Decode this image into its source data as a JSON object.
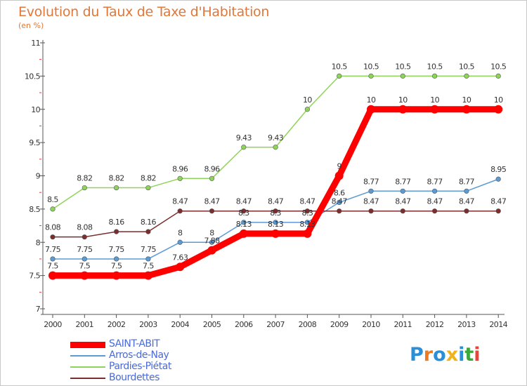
{
  "header": {
    "title": "Evolution du Taux de Taxe d'Habitation",
    "subtitle": "(en %)"
  },
  "logo": {
    "parts": [
      "P",
      "r",
      "o",
      "x",
      "i",
      "t",
      "i"
    ],
    "colors": [
      "#2a8fd6",
      "#f07a1e",
      "#2a8fd6",
      "#f0b21e",
      "#2a8fd6",
      "#3aa83a",
      "#e8443a"
    ]
  },
  "chart_data": {
    "type": "line",
    "title": "Evolution du Taux de Taxe d'Habitation",
    "subtitle": "(en %)",
    "x": [
      "2000",
      "2001",
      "2002",
      "2003",
      "2004",
      "2005",
      "2006",
      "2007",
      "2008",
      "2009",
      "2010",
      "2011",
      "2012",
      "2013",
      "2014"
    ],
    "ylim": [
      7,
      11
    ],
    "yticks": [
      7,
      7.5,
      8,
      8.5,
      9,
      9.5,
      10,
      10.5,
      11
    ],
    "ytick_labels": [
      "7",
      "7.5",
      "8",
      "8.5",
      "9",
      "9.5",
      "10",
      "10.5",
      "11"
    ],
    "grid": false,
    "legend_position": "bottom-left",
    "series": [
      {
        "name": "SAINT-ABIT",
        "color": "#ff0000",
        "emphasis": true,
        "values": [
          7.5,
          7.5,
          7.5,
          7.5,
          7.63,
          7.88,
          8.13,
          8.13,
          8.13,
          9,
          10,
          10,
          10,
          10,
          10
        ],
        "labels": [
          "7.5",
          "7.5",
          "7.5",
          "7.5",
          "7.63",
          "7.88",
          "8.13",
          "8.13",
          "8.13",
          "9",
          "10",
          "10",
          "10",
          "10",
          "10"
        ]
      },
      {
        "name": "Arros-de-Nay",
        "color": "#5b9bd5",
        "values": [
          7.75,
          7.75,
          7.75,
          7.75,
          8,
          8,
          8.3,
          8.3,
          8.3,
          8.6,
          8.77,
          8.77,
          8.77,
          8.77,
          8.95
        ],
        "labels": [
          "7.75",
          "7.75",
          "7.75",
          "7.75",
          "8",
          "8",
          "8.3",
          "8.3",
          "8.3",
          "8.6",
          "8.77",
          "8.77",
          "8.77",
          "8.77",
          "8.95"
        ]
      },
      {
        "name": "Pardies-Piétat",
        "color": "#8fd45a",
        "values": [
          8.5,
          8.82,
          8.82,
          8.82,
          8.96,
          8.96,
          9.43,
          9.43,
          10,
          10.5,
          10.5,
          10.5,
          10.5,
          10.5,
          10.5
        ],
        "labels": [
          "8.5",
          "8.82",
          "8.82",
          "8.82",
          "8.96",
          "8.96",
          "9.43",
          "9.43",
          "10",
          "10.5",
          "10.5",
          "10.5",
          "10.5",
          "10.5",
          "10.5"
        ]
      },
      {
        "name": "Bourdettes",
        "color": "#7a2e2e",
        "values": [
          8.08,
          8.08,
          8.16,
          8.16,
          8.47,
          8.47,
          8.47,
          8.47,
          8.47,
          8.47,
          8.47,
          8.47,
          8.47,
          8.47,
          8.47
        ],
        "labels": [
          "8.08",
          "8.08",
          "8.16",
          "8.16",
          "8.47",
          "8.47",
          "8.47",
          "8.47",
          "8.47",
          "8.47",
          "8.47",
          "8.47",
          "8.47",
          "8.47",
          "8.47"
        ]
      }
    ]
  }
}
